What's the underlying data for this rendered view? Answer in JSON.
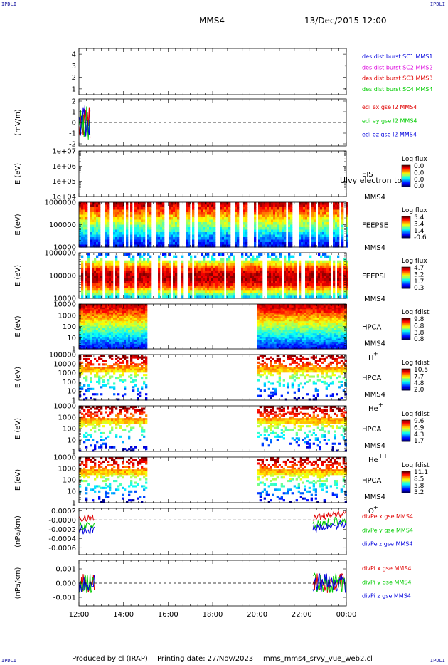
{
  "corners": {
    "tl": "IPDLI",
    "tr": "IPDLI",
    "bl": "IPDLI",
    "br": "IPDLI"
  },
  "header": {
    "spacecraft": "MMS4",
    "datetime": "13/Dec/2015 12:00"
  },
  "footer": {
    "produced_by": "Produced by cl (IRAP)",
    "printing_date": "Printing date: 27/Nov/2023",
    "script": "mms_mms4_srvy_vue_web2.cl"
  },
  "colors": {
    "red": "#e00000",
    "green": "#00cc00",
    "blue": "#0000dd",
    "magenta": "#dd00dd"
  },
  "chart_data": [
    {
      "id": "des-dist",
      "type": "line",
      "ylim": [
        0.5,
        4.5
      ],
      "yticks": [
        "1",
        "2",
        "3",
        "4"
      ],
      "ytick_values": [
        1,
        2,
        3,
        4
      ],
      "ylabel": "",
      "series": [
        {
          "name": "des dist burst SC1 MMS1",
          "color": "#0000dd"
        },
        {
          "name": "des dist burst SC2 MMS2",
          "color": "#dd00dd"
        },
        {
          "name": "des dist burst SC3 MMS3",
          "color": "#e00000"
        },
        {
          "name": "des dist burst SC4 MMS4",
          "color": "#00cc00"
        }
      ],
      "dots": [
        {
          "x": 23.95,
          "y": 3
        },
        {
          "x": 23.95,
          "y": 1
        }
      ]
    },
    {
      "id": "edi",
      "type": "line",
      "ylim": [
        -2.2,
        2.2
      ],
      "yticks": [
        "-2",
        "-1",
        "0",
        "1",
        "2"
      ],
      "ytick_values": [
        -2,
        -1,
        0,
        1,
        2
      ],
      "ylabel": "(mV/m)",
      "zero_line": 0,
      "series": [
        {
          "name": "edi ex gse l2 MMS4",
          "color": "#e00000"
        },
        {
          "name": "edi ey gse l2 MMS4",
          "color": "#00cc00"
        },
        {
          "name": "edi ez gse l2 MMS4",
          "color": "#0000dd"
        }
      ],
      "data_range": [
        12.0,
        12.5
      ],
      "amplitude": 1.8
    },
    {
      "id": "eis",
      "type": "heatmap",
      "log": true,
      "ylim": [
        10000,
        10000000
      ],
      "yticks": [
        "1e+04",
        "1e+05",
        "1e+06",
        "1e+07"
      ],
      "ytick_values": [
        10000,
        100000,
        1000000,
        10000000
      ],
      "ylabel": "E (eV)",
      "instrument": "EIS",
      "sc": "MMS4",
      "overlay": "Ulvy electron to",
      "cbar_title": "Log flux",
      "cbar": [
        "0.0",
        "0.0",
        "0.0",
        "0.0"
      ],
      "empty": true
    },
    {
      "id": "feeps-e",
      "type": "heatmap",
      "log": true,
      "ylim": [
        10000,
        1000000
      ],
      "yticks": [
        "10000",
        "100000",
        "1000000"
      ],
      "ytick_values": [
        10000,
        100000,
        1000000
      ],
      "ylabel": "E (eV)",
      "instrument": "FEEPSE",
      "sc": "MMS4",
      "cbar_title": "Log flux",
      "cbar": [
        "5.4",
        "3.4",
        "1.4",
        "-0.6"
      ],
      "coverage": [
        [
          12.0,
          24.0
        ]
      ]
    },
    {
      "id": "feeps-i",
      "type": "heatmap",
      "log": true,
      "ylim": [
        10000,
        1000000
      ],
      "yticks": [
        "10000",
        "100000",
        "1000000"
      ],
      "ytick_values": [
        10000,
        100000,
        1000000
      ],
      "ylabel": "E (eV)",
      "instrument": "FEEPSI",
      "sc": "MMS4",
      "cbar_title": "Log flux",
      "cbar": [
        "4.7",
        "3.2",
        "1.7",
        "0.3"
      ],
      "coverage": [
        [
          12.0,
          24.0
        ]
      ]
    },
    {
      "id": "hpca-h",
      "type": "heatmap",
      "log": true,
      "ylim": [
        1,
        10000
      ],
      "yticks": [
        "1",
        "10",
        "100",
        "1000",
        "10000"
      ],
      "ytick_values": [
        1,
        10,
        100,
        1000,
        10000
      ],
      "ylabel": "E (eV)",
      "instrument": "HPCA",
      "sc": "MMS4",
      "species": "H",
      "charge": "+",
      "cbar_title": "Log fdist",
      "cbar": [
        "9.8",
        "6.8",
        "3.8",
        "0.8"
      ],
      "coverage": [
        [
          12.0,
          15.0
        ],
        [
          20.0,
          24.0
        ]
      ]
    },
    {
      "id": "hpca-he1",
      "type": "heatmap",
      "log": true,
      "ylim": [
        1,
        100000
      ],
      "yticks": [
        "1",
        "10",
        "100",
        "1000",
        "10000",
        "100000"
      ],
      "ytick_values": [
        1,
        10,
        100,
        1000,
        10000,
        100000
      ],
      "ylabel": "E (eV)",
      "instrument": "HPCA",
      "sc": "MMS4",
      "species": "He",
      "charge": "+",
      "cbar_title": "Log fdist",
      "cbar": [
        "10.5",
        "7.7",
        "4.8",
        "2.0"
      ],
      "coverage": [
        [
          12.0,
          15.0
        ],
        [
          20.0,
          24.0
        ]
      ]
    },
    {
      "id": "hpca-he2",
      "type": "heatmap",
      "log": true,
      "ylim": [
        1,
        10000
      ],
      "yticks": [
        "1",
        "10",
        "100",
        "1000",
        "10000"
      ],
      "ytick_values": [
        1,
        10,
        100,
        1000,
        10000
      ],
      "ylabel": "E (eV)",
      "instrument": "HPCA",
      "sc": "MMS4",
      "species": "He",
      "charge": "++",
      "cbar_title": "Log fdist",
      "cbar": [
        "9.6",
        "6.9",
        "4.3",
        "1.7"
      ],
      "coverage": [
        [
          12.0,
          15.0
        ],
        [
          20.0,
          24.0
        ]
      ]
    },
    {
      "id": "hpca-o",
      "type": "heatmap",
      "log": true,
      "ylim": [
        1,
        10000
      ],
      "yticks": [
        "1",
        "10",
        "100",
        "1000",
        "10000"
      ],
      "ytick_values": [
        1,
        10,
        100,
        1000,
        10000
      ],
      "ylabel": "E (eV)",
      "instrument": "HPCA",
      "sc": "MMS4",
      "species": "O",
      "charge": "+",
      "cbar_title": "Log fdist",
      "cbar": [
        "11.1",
        "8.5",
        "5.8",
        "3.2"
      ],
      "coverage": [
        [
          12.0,
          15.0
        ],
        [
          20.0,
          24.0
        ]
      ]
    },
    {
      "id": "divpe",
      "type": "line",
      "ylim": [
        -0.00075,
        0.00025
      ],
      "yticks": [
        "-0.0006",
        "-0.0004",
        "-0.0002",
        "-0.0000",
        "0.0002"
      ],
      "ytick_values": [
        -0.0006,
        -0.0004,
        -0.0002,
        0.0,
        0.0002
      ],
      "ylabel": "(nPa/km)",
      "zero_line": 0,
      "series": [
        {
          "name": "divPe x gse MMS4",
          "color": "#e00000"
        },
        {
          "name": "divPe y gse MMS4",
          "color": "#00cc00"
        },
        {
          "name": "divPe z gse MMS4",
          "color": "#0000dd"
        }
      ],
      "segments": [
        [
          12.0,
          12.7
        ],
        [
          22.5,
          24.0
        ]
      ]
    },
    {
      "id": "divpi",
      "type": "line",
      "ylim": [
        -0.0016,
        0.0016
      ],
      "yticks": [
        "-0.001",
        "0.000",
        "0.001"
      ],
      "ytick_values": [
        -0.001,
        0.0,
        0.001
      ],
      "ylabel": "(nPa/km)",
      "zero_line": 0,
      "series": [
        {
          "name": "divPi x gse MMS4",
          "color": "#e00000"
        },
        {
          "name": "divPi y gse MMS4",
          "color": "#00cc00"
        },
        {
          "name": "divPi z gse MMS4",
          "color": "#0000dd"
        }
      ],
      "segments": [
        [
          12.0,
          12.7
        ],
        [
          22.5,
          24.0
        ]
      ]
    }
  ],
  "xaxis": {
    "range": [
      12,
      24
    ],
    "ticks": [
      "12:00",
      "14:00",
      "16:00",
      "18:00",
      "20:00",
      "22:00",
      "00:00"
    ],
    "tick_values": [
      12,
      14,
      16,
      18,
      20,
      22,
      24
    ]
  }
}
